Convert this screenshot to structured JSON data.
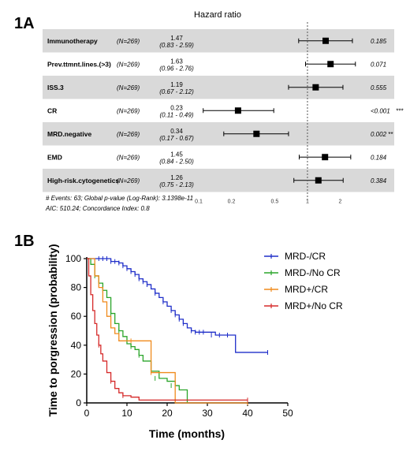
{
  "panel_a_label": "1A",
  "panel_b_label": "1B",
  "chart_data": [
    {
      "type": "forest",
      "title": "Hazard ratio",
      "xscale": "log",
      "xlim": [
        0.1,
        3.5
      ],
      "ticks": [
        0.1,
        0.2,
        0.5,
        1,
        2
      ],
      "tick_labels": [
        "0.1",
        "0.2",
        "0.5",
        "1",
        "2"
      ],
      "reference_line": 1,
      "rows": [
        {
          "variable": "Immunotherapy",
          "n": "(N=269)",
          "hr": 1.47,
          "hr_label": "1.47",
          "ci_label": "(0.83 - 2.59)",
          "lo": 0.83,
          "hi": 2.59,
          "p": "0.185",
          "stars": "",
          "shaded": true
        },
        {
          "variable": "Prev.ttmnt.lines.(>3)",
          "n": "(N=269)",
          "hr": 1.63,
          "hr_label": "1.63",
          "ci_label": "(0.96 - 2.76)",
          "lo": 0.96,
          "hi": 2.76,
          "p": "0.071",
          "stars": "",
          "shaded": false
        },
        {
          "variable": "ISS.3",
          "n": "(N=269)",
          "hr": 1.19,
          "hr_label": "1.19",
          "ci_label": "(0.67 - 2.12)",
          "lo": 0.67,
          "hi": 2.12,
          "p": "0.555",
          "stars": "",
          "shaded": true
        },
        {
          "variable": "CR",
          "n": "(N=269)",
          "hr": 0.23,
          "hr_label": "0.23",
          "ci_label": "(0.11 - 0.49)",
          "lo": 0.11,
          "hi": 0.49,
          "p": "<0.001",
          "stars": "***",
          "shaded": false
        },
        {
          "variable": "MRD.negative",
          "n": "(N=269)",
          "hr": 0.34,
          "hr_label": "0.34",
          "ci_label": "(0.17 - 0.67)",
          "lo": 0.17,
          "hi": 0.67,
          "p": "0.002",
          "stars": "**",
          "shaded": true
        },
        {
          "variable": "EMD",
          "n": "(N=269)",
          "hr": 1.45,
          "hr_label": "1.45",
          "ci_label": "(0.84 - 2.50)",
          "lo": 0.84,
          "hi": 2.5,
          "p": "0.184",
          "stars": "",
          "shaded": false
        },
        {
          "variable": "High-risk.cytogenetics",
          "n": "(N=269)",
          "hr": 1.26,
          "hr_label": "1.26",
          "ci_label": "(0.75 - 2.13)",
          "lo": 0.75,
          "hi": 2.13,
          "p": "0.384",
          "stars": "",
          "shaded": true
        }
      ],
      "footnote_lines": [
        "# Events: 63; Global p-value (Log-Rank): 3.1398e-11",
        "AIC: 510.24; Concordance Index: 0.8"
      ]
    },
    {
      "type": "line",
      "subtype": "kaplan-meier",
      "xlabel": "Time (months)",
      "ylabel": "Time to porgression (probability)",
      "xlim": [
        0,
        50
      ],
      "ylim": [
        0,
        100
      ],
      "xticks": [
        0,
        10,
        20,
        30,
        40,
        50
      ],
      "yticks": [
        0,
        20,
        40,
        60,
        80,
        100
      ],
      "legend_position": "top-right",
      "series": [
        {
          "name": "MRD-/CR",
          "color": "#1f2ec9",
          "x": [
            0,
            5,
            6,
            8,
            9,
            10,
            11,
            12,
            13,
            14,
            15,
            16,
            17,
            18,
            19,
            20,
            21,
            22,
            23,
            24,
            25,
            26,
            27,
            29,
            32,
            34,
            36,
            37,
            45
          ],
          "y": [
            100,
            100,
            98,
            97,
            95,
            93,
            91,
            89,
            86,
            84,
            82,
            79,
            76,
            73,
            70,
            67,
            64,
            61,
            58,
            55,
            52,
            50,
            49,
            49,
            47,
            47,
            47,
            35,
            35
          ],
          "censor_x": [
            3,
            4,
            5,
            6,
            7,
            8,
            9,
            10,
            11,
            12,
            13,
            14,
            15,
            17,
            19,
            21,
            22,
            23,
            24,
            26,
            27,
            28,
            29,
            31,
            33,
            35,
            45
          ],
          "censor_y": [
            100,
            100,
            100,
            98,
            98,
            97,
            95,
            93,
            91,
            89,
            86,
            84,
            82,
            76,
            70,
            64,
            61,
            58,
            55,
            50,
            49,
            49,
            49,
            47,
            47,
            47,
            35
          ]
        },
        {
          "name": "MRD-/No CR",
          "color": "#2aa52a",
          "x": [
            0,
            1,
            2,
            3,
            4,
            5,
            6,
            7,
            8,
            9,
            10,
            11,
            12,
            13,
            14,
            16,
            18,
            20,
            22,
            23,
            25
          ],
          "y": [
            100,
            96,
            88,
            83,
            78,
            73,
            62,
            55,
            50,
            46,
            41,
            39,
            37,
            33,
            29,
            22,
            17,
            15,
            12,
            9,
            0
          ],
          "censor_x": [
            2,
            4,
            6,
            8,
            11,
            13,
            17,
            21
          ],
          "censor_y": [
            88,
            78,
            62,
            50,
            39,
            33,
            17,
            12
          ]
        },
        {
          "name": "MRD+/CR",
          "color": "#f08a1c",
          "x": [
            0,
            2,
            3,
            4,
            5,
            6,
            7,
            8,
            10,
            15,
            16,
            17,
            22,
            40
          ],
          "y": [
            100,
            88,
            80,
            70,
            60,
            52,
            48,
            43,
            43,
            43,
            21,
            21,
            0,
            0
          ],
          "censor_x": [
            11,
            16,
            40
          ],
          "censor_y": [
            43,
            21,
            0
          ]
        },
        {
          "name": "MRD+/No CR",
          "color": "#d62a2a",
          "x": [
            0,
            0.5,
            1,
            1.5,
            2,
            2.5,
            3,
            3.5,
            4,
            5,
            6,
            7,
            8,
            9,
            11,
            13,
            40
          ],
          "y": [
            100,
            88,
            75,
            64,
            55,
            47,
            40,
            34,
            29,
            21,
            15,
            10,
            7,
            5,
            4,
            2,
            2
          ],
          "censor_x": [
            3,
            6,
            9,
            40
          ],
          "censor_y": [
            40,
            15,
            5,
            2
          ]
        }
      ]
    }
  ]
}
